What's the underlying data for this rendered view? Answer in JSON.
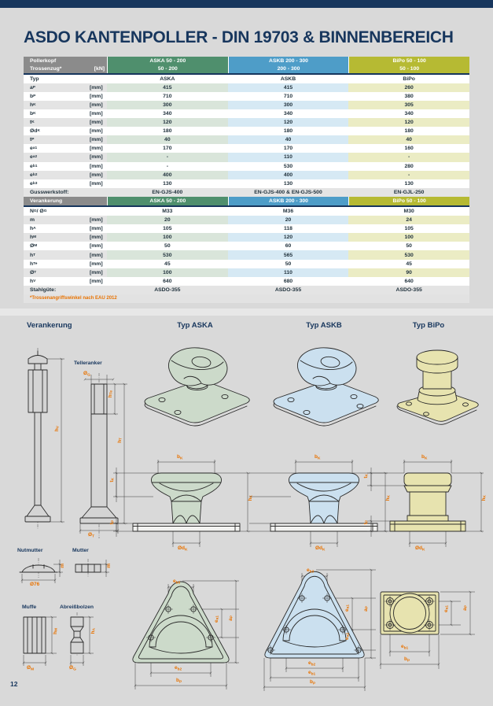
{
  "page": {
    "number": "12"
  },
  "title": "ASDO KANTENPOLLER - DIN 19703 & BINNENBEREICH",
  "colors": {
    "navy": "#17365d",
    "orange": "#e87200",
    "header_gray": "#8b8b8b",
    "green": "#4f8f6d",
    "blue": "#4e9dc8",
    "olive": "#b6ba33",
    "green_tint": "#d9e5da",
    "blue_tint": "#d6e9f4",
    "olive_tint": "#ebecc4",
    "aska_fill": "#ccdaca",
    "askb_fill": "#cbe0ef",
    "bipo_fill": "#e7e3af"
  },
  "table": {
    "header": {
      "col0_line1": "Pollerkopf",
      "col0_line2": "Trossenzug*",
      "col0_unit": "[kN]",
      "columns": [
        {
          "title": "ASKA 50 - 200",
          "range": "50 - 200"
        },
        {
          "title": "ASKB 200 - 300",
          "range": "200 - 300"
        },
        {
          "title": "BiPo 50 - 100",
          "range": "50 - 100"
        }
      ]
    },
    "rows1": [
      {
        "label": {
          "b": "Typ"
        },
        "unit": "",
        "values": [
          "ASKA",
          "ASKB",
          "BiPo"
        ],
        "tint": false
      },
      {
        "label": {
          "b": "a",
          "s": "P"
        },
        "unit": "[mm]",
        "values": [
          "415",
          "415",
          "260"
        ],
        "tint": true
      },
      {
        "label": {
          "b": "b",
          "s": "P"
        },
        "unit": "[mm]",
        "values": [
          "710",
          "710",
          "380"
        ],
        "tint": false
      },
      {
        "label": {
          "b": "h",
          "s": "K"
        },
        "unit": "[mm]",
        "values": [
          "300",
          "300",
          "305"
        ],
        "tint": true
      },
      {
        "label": {
          "b": "b",
          "s": "K"
        },
        "unit": "[mm]",
        "values": [
          "340",
          "340",
          "340"
        ],
        "tint": false
      },
      {
        "label": {
          "b": "t",
          "s": "K"
        },
        "unit": "[mm]",
        "values": [
          "120",
          "120",
          "120"
        ],
        "tint": true
      },
      {
        "label": {
          "b": "Ød",
          "s": "K"
        },
        "unit": "[mm]",
        "values": [
          "180",
          "180",
          "180"
        ],
        "tint": false
      },
      {
        "label": {
          "b": "t",
          "s": "P"
        },
        "unit": "[mm]",
        "values": [
          "40",
          "40",
          "40"
        ],
        "tint": true
      },
      {
        "label": {
          "b": "e",
          "s": "a1"
        },
        "unit": "[mm]",
        "values": [
          "170",
          "170",
          "160"
        ],
        "tint": false
      },
      {
        "label": {
          "b": "e",
          "s": "a2"
        },
        "unit": "[mm]",
        "values": [
          "-",
          "110",
          "-"
        ],
        "tint": true
      },
      {
        "label": {
          "b": "e",
          "s": "b1"
        },
        "unit": "[mm]",
        "values": [
          "-",
          "530",
          "280"
        ],
        "tint": false
      },
      {
        "label": {
          "b": "e",
          "s": "b2"
        },
        "unit": "[mm]",
        "values": [
          "400",
          "400",
          "-"
        ],
        "tint": true
      },
      {
        "label": {
          "b": "e",
          "s": "b3"
        },
        "unit": "[mm]",
        "values": [
          "130",
          "130",
          "130"
        ],
        "tint": false
      },
      {
        "label": {
          "b": "Gusswerkstoff:"
        },
        "unit": "",
        "values": [
          "EN-GJS-400",
          "EN-GJS-400 & EN-GJS-500",
          "EN-GJL-250"
        ],
        "tint": false,
        "band": true
      }
    ],
    "anchor_header": {
      "col0": "Verankerung",
      "columns": [
        "ASKA 50 - 200",
        "ASKB 200 - 300",
        "BiPo 50 - 100"
      ]
    },
    "rows2": [
      {
        "label": {
          "b": "N",
          "s": "G",
          "b2": " / Ø",
          "s2": "G"
        },
        "unit": "",
        "values": [
          "M33",
          "M36",
          "M30"
        ],
        "tint": false
      },
      {
        "label": {
          "b": "m"
        },
        "unit": "[mm]",
        "values": [
          "20",
          "20",
          "24"
        ],
        "tint": true
      },
      {
        "label": {
          "b": "h",
          "s": "A"
        },
        "unit": "[mm]",
        "values": [
          "105",
          "118",
          "105"
        ],
        "tint": false
      },
      {
        "label": {
          "b": "h",
          "s": "M"
        },
        "unit": "[mm]",
        "values": [
          "100",
          "120",
          "100"
        ],
        "tint": true
      },
      {
        "label": {
          "b": "Ø",
          "s": "M"
        },
        "unit": "[mm]",
        "values": [
          "50",
          "60",
          "50"
        ],
        "tint": false
      },
      {
        "label": {
          "b": "h",
          "s": "T"
        },
        "unit": "[mm]",
        "values": [
          "530",
          "565",
          "530"
        ],
        "tint": true
      },
      {
        "label": {
          "b": "h",
          "s": "Te"
        },
        "unit": "[mm]",
        "values": [
          "45",
          "50",
          "45"
        ],
        "tint": false
      },
      {
        "label": {
          "b": "Ø",
          "s": "T"
        },
        "unit": "[mm]",
        "values": [
          "100",
          "110",
          "90"
        ],
        "tint": true
      },
      {
        "label": {
          "b": "h",
          "s": "V"
        },
        "unit": "[mm]",
        "values": [
          "640",
          "680",
          "640"
        ],
        "tint": false
      },
      {
        "label": {
          "b": "Stahlgüte:"
        },
        "unit": "",
        "values": [
          "ASDO-355",
          "ASDO-355",
          "ASDO-355"
        ],
        "tint": false,
        "band": true
      }
    ],
    "footnote": "*Trossenangriffswinkel nach EAU 2012"
  },
  "drawings": {
    "headers": [
      "Verankerung",
      "Typ ASKA",
      "Typ ASKB",
      "Typ BiPo"
    ],
    "labels": {
      "telleranker": "Telleranker",
      "nutmutter": "Nutmutter",
      "mutter": "Mutter",
      "muffe": "Muffe",
      "abreissbolzen": "Abreißbolzen"
    }
  },
  "dims": {
    "bk": {
      "b": "b",
      "s": "K"
    },
    "hk": {
      "b": "h",
      "s": "K"
    },
    "odk": {
      "b": "Ød",
      "s": "K"
    },
    "tk": {
      "b": "t",
      "s": "K"
    },
    "tp": {
      "b": "t",
      "s": "P"
    },
    "bp": {
      "b": "b",
      "s": "P"
    },
    "ap": {
      "b": "a",
      "s": "P"
    },
    "ea1": {
      "b": "e",
      "s": "a1"
    },
    "ea2": {
      "b": "e",
      "s": "a2"
    },
    "eb1": {
      "b": "e",
      "s": "b1"
    },
    "eb2": {
      "b": "e",
      "s": "b2"
    },
    "eb3": {
      "b": "e",
      "s": "b3"
    },
    "hv": {
      "b": "h",
      "s": "V"
    },
    "og": {
      "b": "Ø",
      "s": "G"
    },
    "ha": {
      "b": "h",
      "s": "A"
    },
    "hte": {
      "b": "h",
      "s": "Te"
    },
    "ht": {
      "b": "h",
      "s": "T"
    },
    "ot": {
      "b": "Ø",
      "s": "T"
    },
    "m": {
      "b": "m"
    },
    "d76": {
      "b": "Ø76"
    },
    "hm": {
      "b": "h",
      "s": "M"
    },
    "om": {
      "b": "Ø",
      "s": "M"
    }
  }
}
